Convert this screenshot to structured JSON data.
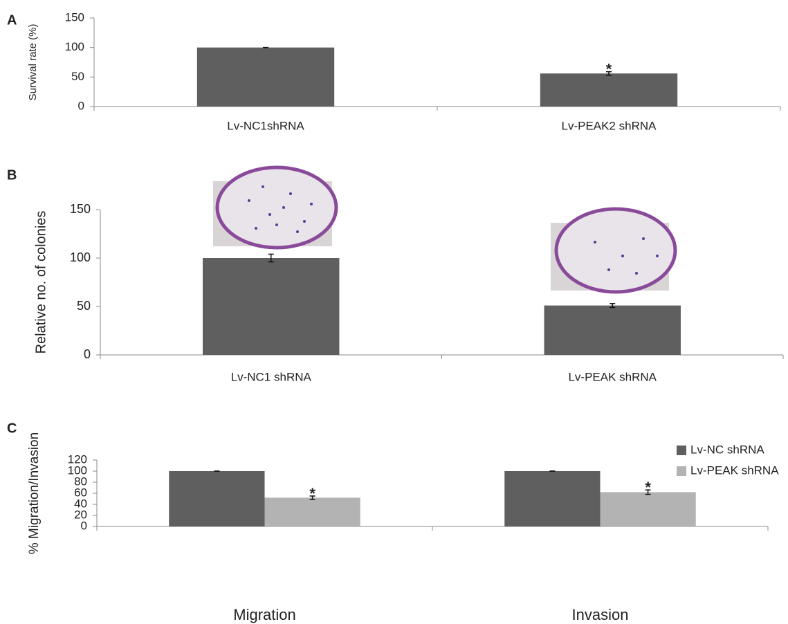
{
  "chart_data": [
    {
      "type": "bar",
      "panel_label": "A",
      "ylabel": "Survival rate (%)",
      "categories": [
        "Lv-NC1shRNA",
        "Lv-PEAK2 shRNA"
      ],
      "values": [
        100,
        56
      ],
      "errors": [
        0,
        3
      ],
      "color": "#5f5f5f",
      "ylim": [
        0,
        150
      ],
      "yticks": [
        0,
        50,
        100,
        150
      ],
      "annotations": [
        {
          "text": "*",
          "category": 1
        }
      ]
    },
    {
      "type": "bar",
      "panel_label": "B",
      "ylabel": "Relative no. of colonies",
      "categories": [
        "Lv-NC1 shRNA",
        "Lv-PEAK  shRNA"
      ],
      "values": [
        100,
        51
      ],
      "errors": [
        4,
        2
      ],
      "color": "#5f5f5f",
      "ylim": [
        0,
        150
      ],
      "yticks": [
        0,
        50,
        100,
        150
      ]
    },
    {
      "type": "bar",
      "panel_label": "C",
      "ylabel": "% Migration/Invasion",
      "categories": [
        "Migration",
        "Invasion"
      ],
      "series": [
        {
          "name": "Lv-NC shRNA",
          "color": "#5f5f5f",
          "values": [
            100,
            100
          ],
          "errors": [
            0,
            0
          ]
        },
        {
          "name": "Lv-PEAK shRNA",
          "color": "#b3b3b3",
          "values": [
            52,
            62
          ],
          "errors": [
            3,
            4
          ]
        }
      ],
      "ylim": [
        0,
        120
      ],
      "yticks": [
        0,
        20,
        40,
        60,
        80,
        100,
        120
      ],
      "legend": "right",
      "annotations": [
        {
          "text": "*",
          "series": 1,
          "category": 0
        },
        {
          "text": "*",
          "series": 1,
          "category": 1
        }
      ]
    }
  ]
}
